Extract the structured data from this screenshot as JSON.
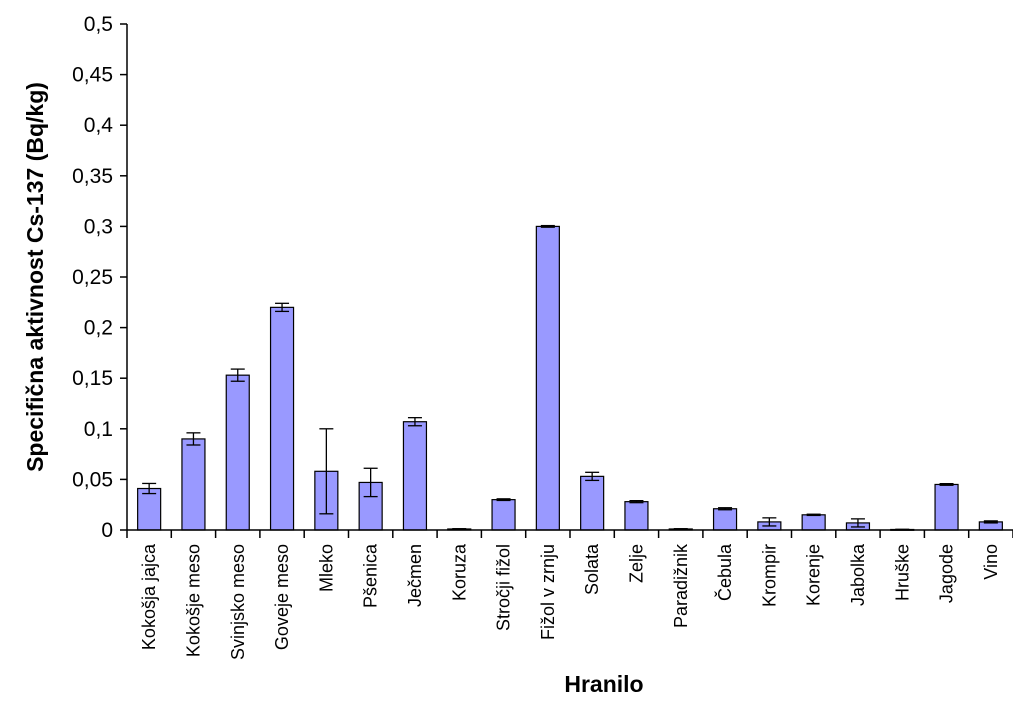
{
  "chart_data": {
    "type": "bar",
    "xlabel": "Hranilo",
    "ylabel": "Specifična aktivnost Cs-137 (Bq/kg)",
    "ylim": [
      0,
      0.5
    ],
    "yticks": [
      0,
      0.05,
      0.1,
      0.15,
      0.2,
      0.25,
      0.3,
      0.35,
      0.4,
      0.45,
      0.5
    ],
    "ytick_labels": [
      "0",
      "0,05",
      "0,1",
      "0,15",
      "0,2",
      "0,25",
      "0,3",
      "0,35",
      "0,4",
      "0,45",
      "0,5"
    ],
    "grid": false,
    "legend": "none",
    "bar_color": "#9999ff",
    "error_bars": true,
    "categories": [
      "Kokošja jajca",
      "Kokošje meso",
      "Svinjsko meso",
      "Goveje meso",
      "Mleko",
      "Pšenica",
      "Ječmen",
      "Koruza",
      "Stročji fižol",
      "Fižol v zrnju",
      "Solata",
      "Zelje",
      "Paradižnik",
      "Čebula",
      "Krompir",
      "Korenje",
      "Jabolka",
      "Hruške",
      "Jagode",
      "Vino"
    ],
    "values": [
      0.041,
      0.09,
      0.153,
      0.22,
      0.058,
      0.047,
      0.107,
      0.001,
      0.03,
      0.3,
      0.053,
      0.028,
      0.001,
      0.021,
      0.008,
      0.015,
      0.007,
      0.0005,
      0.045,
      0.008
    ],
    "errors": [
      0.005,
      0.006,
      0.006,
      0.004,
      0.042,
      0.014,
      0.004,
      0.0003,
      0.0008,
      0.0008,
      0.004,
      0.001,
      0.0003,
      0.001,
      0.004,
      0.0006,
      0.004,
      0.0002,
      0.0008,
      0.001
    ]
  }
}
